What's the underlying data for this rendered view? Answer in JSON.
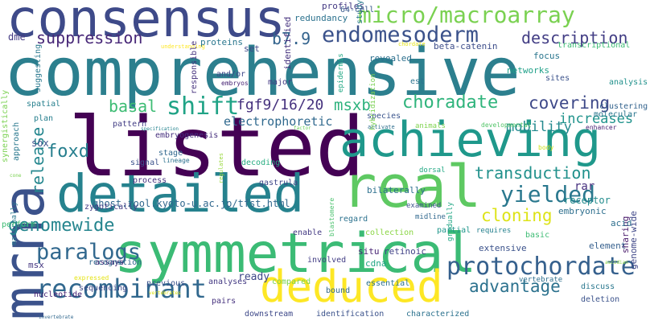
{
  "colors": {
    "background": "#ffffff",
    "palette": "viridis"
  },
  "words": [
    {
      "text": "comprehensive",
      "color": "#2c7f8e"
    },
    {
      "text": "symmetrical",
      "color": "#3bbb75"
    },
    {
      "text": "listed",
      "color": "#440154"
    },
    {
      "text": "consensus",
      "color": "#3e4a89"
    },
    {
      "text": "mrna",
      "color": "#3b528b"
    },
    {
      "text": "detailed",
      "color": "#26828e"
    },
    {
      "text": "achieving",
      "color": "#1f988b"
    },
    {
      "text": "real",
      "color": "#5ec962"
    },
    {
      "text": "deduced",
      "color": "#fde725"
    },
    {
      "text": "recombinant",
      "color": "#31688e"
    },
    {
      "text": "protochordate",
      "color": "#35608d"
    },
    {
      "text": "micro/macroarray",
      "color": "#7ad151"
    },
    {
      "text": "endomesoderm",
      "color": "#3b528b"
    },
    {
      "text": "paralogs",
      "color": "#31688e"
    },
    {
      "text": "shift",
      "color": "#20a386"
    },
    {
      "text": "yielded",
      "color": "#2a788e"
    },
    {
      "text": "choradate",
      "color": "#2fb47c"
    },
    {
      "text": "covering",
      "color": "#3e4989"
    },
    {
      "text": "genomewide",
      "color": "#25858e"
    },
    {
      "text": "advantage",
      "color": "#2c728e"
    },
    {
      "text": "transduction",
      "color": "#21918c"
    },
    {
      "text": "description",
      "color": "#433e85"
    },
    {
      "text": "suppression",
      "color": "#482878"
    },
    {
      "text": "basal",
      "color": "#3dbc74"
    },
    {
      "text": "fgf9/16/20",
      "color": "#46327e"
    },
    {
      "text": "release",
      "color": "#24868e"
    },
    {
      "text": "foxd",
      "color": "#277f8e"
    },
    {
      "text": "msxb",
      "color": "#2db27d"
    },
    {
      "text": "cloning",
      "color": "#dde318"
    },
    {
      "text": "b7.9",
      "color": "#33638d"
    },
    {
      "text": "electrophoretic",
      "color": "#30698e"
    },
    {
      "text": "increases",
      "color": "#20938c"
    },
    {
      "text": "mobility",
      "color": "#23898e"
    },
    {
      "text": "ready",
      "color": "#3f4788"
    },
    {
      "text": "sox",
      "color": "#3b518b"
    },
    {
      "text": "msx",
      "color": "#453781"
    },
    {
      "text": "dme",
      "color": "#443a83"
    },
    {
      "text": "ghost.zool.kyoto-u.ac.jp/tfst.html",
      "color": "#31688e"
    },
    {
      "text": "bilaterally",
      "color": "#2d708e"
    },
    {
      "text": "rar",
      "color": "#46307e"
    },
    {
      "text": "receptor",
      "color": "#228c8d"
    },
    {
      "text": "embryonic",
      "color": "#2e6f8e"
    },
    {
      "text": "genome-wide",
      "color": "#3f4788"
    },
    {
      "text": "retinoic",
      "color": "#414287"
    },
    {
      "text": "situ",
      "color": "#482475"
    },
    {
      "text": "cdna",
      "color": "#21a685"
    },
    {
      "text": "sharing",
      "color": "#48186a"
    },
    {
      "text": "extensive",
      "color": "#3b528b"
    },
    {
      "text": "element",
      "color": "#355f8d"
    },
    {
      "text": "proteins",
      "color": "#2a778e"
    },
    {
      "text": "set",
      "color": "#3f4889"
    },
    {
      "text": "identified",
      "color": "#46337f"
    },
    {
      "text": "redundancy",
      "color": "#2c728e"
    },
    {
      "text": "revealed",
      "color": "#2d708e"
    },
    {
      "text": "beta-catenin",
      "color": "#3d4d8a"
    },
    {
      "text": "networks",
      "color": "#1fa088"
    },
    {
      "text": "profiles",
      "color": "#443983"
    },
    {
      "text": "focus",
      "color": "#2a768e"
    },
    {
      "text": "study",
      "color": "#29798e"
    },
    {
      "text": "64-cell",
      "color": "#38598c"
    },
    {
      "text": "transcriptional",
      "color": "#3dbc74"
    },
    {
      "text": "chordate",
      "color": "#e5e419"
    },
    {
      "text": "understanding",
      "color": "#fde725"
    },
    {
      "text": "responsible",
      "color": "#46327e"
    },
    {
      "text": "and/or",
      "color": "#3e4989"
    },
    {
      "text": "embryos",
      "color": "#482475"
    },
    {
      "text": "major",
      "color": "#443a83"
    },
    {
      "text": "epidermis",
      "color": "#22a884"
    },
    {
      "text": "est",
      "color": "#2c738e"
    },
    {
      "text": "analysis",
      "color": "#21918c"
    },
    {
      "text": "sites",
      "color": "#3b528b"
    },
    {
      "text": "clustering",
      "color": "#33638d"
    },
    {
      "text": "molecular",
      "color": "#2a768e"
    },
    {
      "text": "developmental",
      "color": "#52c569"
    },
    {
      "text": "enhancer",
      "color": "#482173"
    },
    {
      "text": "factor",
      "color": "#6ccd5a"
    },
    {
      "text": "specification",
      "color": "#25838e"
    },
    {
      "text": "activate",
      "color": "#2e6e8e"
    },
    {
      "text": "animals",
      "color": "#7fd34e"
    },
    {
      "text": "species",
      "color": "#3a548c"
    },
    {
      "text": "hybridization",
      "color": "#7ad151"
    },
    {
      "text": "suggesting",
      "color": "#2a788e"
    },
    {
      "text": "spatial",
      "color": "#27808e"
    },
    {
      "text": "plan",
      "color": "#277f8e"
    },
    {
      "text": "pattern",
      "color": "#433e85"
    },
    {
      "text": "embryogenesis",
      "color": "#46307e"
    },
    {
      "text": "approach",
      "color": "#2a788e"
    },
    {
      "text": "synergistically",
      "color": "#7ad151"
    },
    {
      "text": "gradually",
      "color": "#21a685"
    },
    {
      "text": "stage",
      "color": "#31688e"
    },
    {
      "text": "signal",
      "color": "#3b528b"
    },
    {
      "text": "lineage",
      "color": "#2c728e"
    },
    {
      "text": "decoding",
      "color": "#27ad81"
    },
    {
      "text": "process",
      "color": "#46327e"
    },
    {
      "text": "gastrula",
      "color": "#3f4788"
    },
    {
      "text": "regulates",
      "color": "#99d83d"
    },
    {
      "text": "dorsal",
      "color": "#22a884"
    },
    {
      "text": "examined",
      "color": "#3b528b"
    },
    {
      "text": "midline",
      "color": "#31688e"
    },
    {
      "text": "regard",
      "color": "#2c728e"
    },
    {
      "text": "partial",
      "color": "#1f968b"
    },
    {
      "text": "requires",
      "color": "#26818e"
    },
    {
      "text": "basic",
      "color": "#3dbc74"
    },
    {
      "text": "blastomere",
      "color": "#4ac16d"
    },
    {
      "text": "maternally",
      "color": "#2a778e"
    },
    {
      "text": "zygotically",
      "color": "#433e85"
    },
    {
      "text": "perform",
      "color": "#3dbc74"
    },
    {
      "text": "assays",
      "color": "#482878"
    },
    {
      "text": "recognition",
      "color": "#31688e"
    },
    {
      "text": "body",
      "color": "#cfe11c"
    },
    {
      "text": "acid",
      "color": "#2e6f8e"
    },
    {
      "text": "collection",
      "color": "#8bd646"
    },
    {
      "text": "enable",
      "color": "#443a83"
    },
    {
      "text": "involved",
      "color": "#433e85"
    },
    {
      "text": "sequencing",
      "color": "#3e4989"
    },
    {
      "text": "nucleotide",
      "color": "#482475"
    },
    {
      "text": "expressed",
      "color": "#e5e419"
    },
    {
      "text": "previous",
      "color": "#3b528b"
    },
    {
      "text": "analyses",
      "color": "#443a83"
    },
    {
      "text": "compared",
      "color": "#7ad151"
    },
    {
      "text": "essential",
      "color": "#2c728e"
    },
    {
      "text": "bound",
      "color": "#31688e"
    },
    {
      "text": "vertebrate",
      "color": "#2e6f8e"
    },
    {
      "text": "discuss",
      "color": "#2a778e"
    },
    {
      "text": "deletion",
      "color": "#3b528b"
    },
    {
      "text": "ascidian",
      "color": "#8bd646"
    },
    {
      "text": "cone",
      "color": "#7ad151"
    },
    {
      "text": "pairs",
      "color": "#46327e"
    },
    {
      "text": "downstream",
      "color": "#3e4989"
    },
    {
      "text": "identification",
      "color": "#3b528b"
    },
    {
      "text": "characterized",
      "color": "#2c728e"
    },
    {
      "text": "invertebrate",
      "color": "#31688e"
    },
    {
      "text": "vertebrates",
      "color": "#d8e219"
    }
  ]
}
